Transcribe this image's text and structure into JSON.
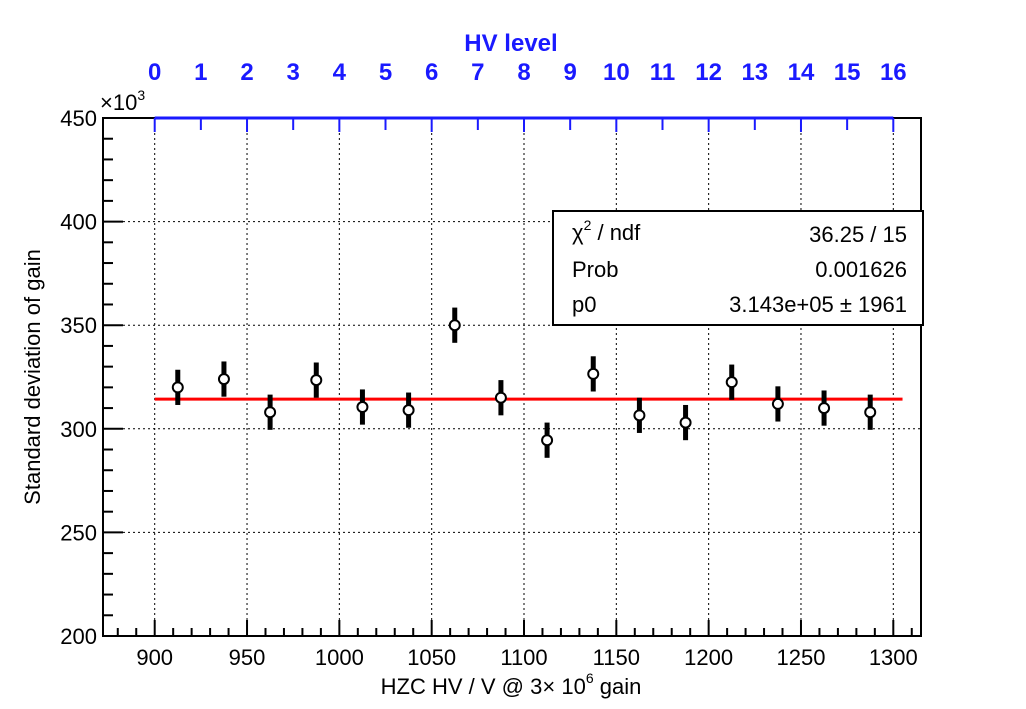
{
  "chart_data": {
    "type": "scatter",
    "x_title_main": "HZC HV / V @ 3",
    "x_title_mid": "× 10",
    "x_title_exp": "6",
    "x_title_tail": " gain",
    "y_title": "Standard deviation of gain",
    "y_multiplier_base": "×10",
    "y_multiplier_exp": "3",
    "top_axis_title": "HV level",
    "top_axis_labels": [
      "0",
      "1",
      "2",
      "3",
      "4",
      "5",
      "6",
      "7",
      "8",
      "9",
      "10",
      "11",
      "12",
      "13",
      "14",
      "15",
      "16"
    ],
    "top_axis_x": [
      900,
      925,
      950,
      975,
      1000,
      1025,
      1050,
      1075,
      1100,
      1125,
      1150,
      1175,
      1200,
      1225,
      1250,
      1275,
      1300
    ],
    "xlim": [
      872,
      1315
    ],
    "ylim": [
      200,
      450
    ],
    "x_major_ticks": [
      900,
      950,
      1000,
      1050,
      1100,
      1150,
      1200,
      1250,
      1300
    ],
    "x_tick_labels": [
      "900",
      "950",
      "1000",
      "1050",
      "1100",
      "1150",
      "1200",
      "1250",
      "1300"
    ],
    "y_major_ticks": [
      200,
      250,
      300,
      350,
      400,
      450
    ],
    "y_tick_labels": [
      "200",
      "250",
      "300",
      "350",
      "400",
      "450"
    ],
    "grid": true,
    "series": [
      {
        "x": [
          912.5,
          937.5,
          962.5,
          987.5,
          1012.5,
          1037.5,
          1062.5,
          1087.5,
          1112.5,
          1137.5,
          1162.5,
          1187.5,
          1212.5,
          1237.5,
          1262.5,
          1287.5
        ],
        "y": [
          320,
          324,
          308,
          323.5,
          310.5,
          309,
          350,
          315,
          294.5,
          326.5,
          306.5,
          303,
          322.5,
          312,
          310,
          308
        ],
        "yerr": [
          8.5,
          8.5,
          8.5,
          8.5,
          8.5,
          8.5,
          8.5,
          8.5,
          8.5,
          8.5,
          8.5,
          8.5,
          8.5,
          8.5,
          8.5,
          8.5
        ]
      }
    ],
    "fit": {
      "y": 314.3,
      "x_range": [
        900,
        1305
      ],
      "color": "#ff0000"
    },
    "stats_box": {
      "rows": [
        {
          "label_base": "χ",
          "label_exp": "2",
          "label_tail": " / ndf",
          "value": "36.25 / 15"
        },
        {
          "label": "Prob",
          "value": "0.001626"
        },
        {
          "label": "p0",
          "value": "3.143e+05 ±  1961"
        }
      ]
    },
    "colors": {
      "top_axis": "#1a1aff",
      "fit": "#ff0000",
      "markers": "#000000"
    }
  }
}
